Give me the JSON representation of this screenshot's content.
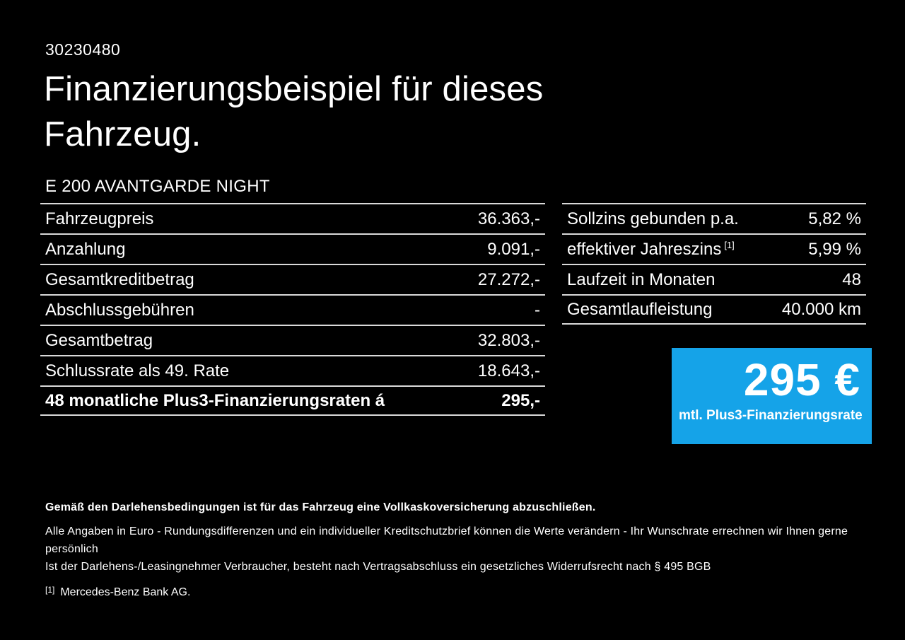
{
  "page": {
    "doc_id": "30230480",
    "title": "Finanzierungsbeispiel für dieses Fahrzeug.",
    "vehicle_model": "E 200 AVANTGARDE NIGHT"
  },
  "colors": {
    "background": "#000000",
    "text": "#ffffff",
    "divider": "#d9d9d9",
    "accent_blue": "#15a3e8"
  },
  "finance_table": {
    "rows": [
      {
        "label": "Fahrzeugpreis",
        "value": "36.363,-"
      },
      {
        "label": "Anzahlung",
        "value": "9.091,-"
      },
      {
        "label": "Gesamtkreditbetrag",
        "value": "27.272,-"
      },
      {
        "label": "Abschlussgebühren",
        "value": "-"
      },
      {
        "label": "Gesamtbetrag",
        "value": "32.803,-"
      },
      {
        "label": "Schlussrate als 49. Rate",
        "value": "18.643,-"
      },
      {
        "label": "48 monatliche Plus3-Finanzierungsraten á",
        "value": "295,-"
      }
    ]
  },
  "conditions_table": {
    "rows": [
      {
        "label": "Sollzins gebunden p.a.",
        "sup": "",
        "value": "5,82 %"
      },
      {
        "label": "effektiver Jahreszins",
        "sup": "[1]",
        "value": "5,99 %"
      },
      {
        "label": "Laufzeit in Monaten",
        "sup": "",
        "value": "48"
      },
      {
        "label": "Gesamtlaufleistung",
        "sup": "",
        "value": "40.000 km"
      }
    ]
  },
  "rate_box": {
    "amount": "295 €",
    "caption": "mtl. Plus3-Finanzierungsrate",
    "background": "#15a3e8"
  },
  "footer": {
    "bold_note": "Gemäß den Darlehensbedingungen ist für das Fahrzeug eine Vollkaskoversicherung abzuschließen.",
    "note_line1": "Alle Angaben in Euro - Rundungsdifferenzen und ein individueller Kreditschutzbrief können die Werte verändern - Ihr Wunschrate errechnen wir Ihnen gerne persönlich",
    "note_line2": "Ist der Darlehens-/Leasingnehmer Verbraucher, besteht nach Vertragsabschluss ein gesetzliches Widerrufsrecht nach § 495 BGB",
    "footnote_marker": "[1]",
    "footnote_text": "Mercedes-Benz Bank AG."
  }
}
